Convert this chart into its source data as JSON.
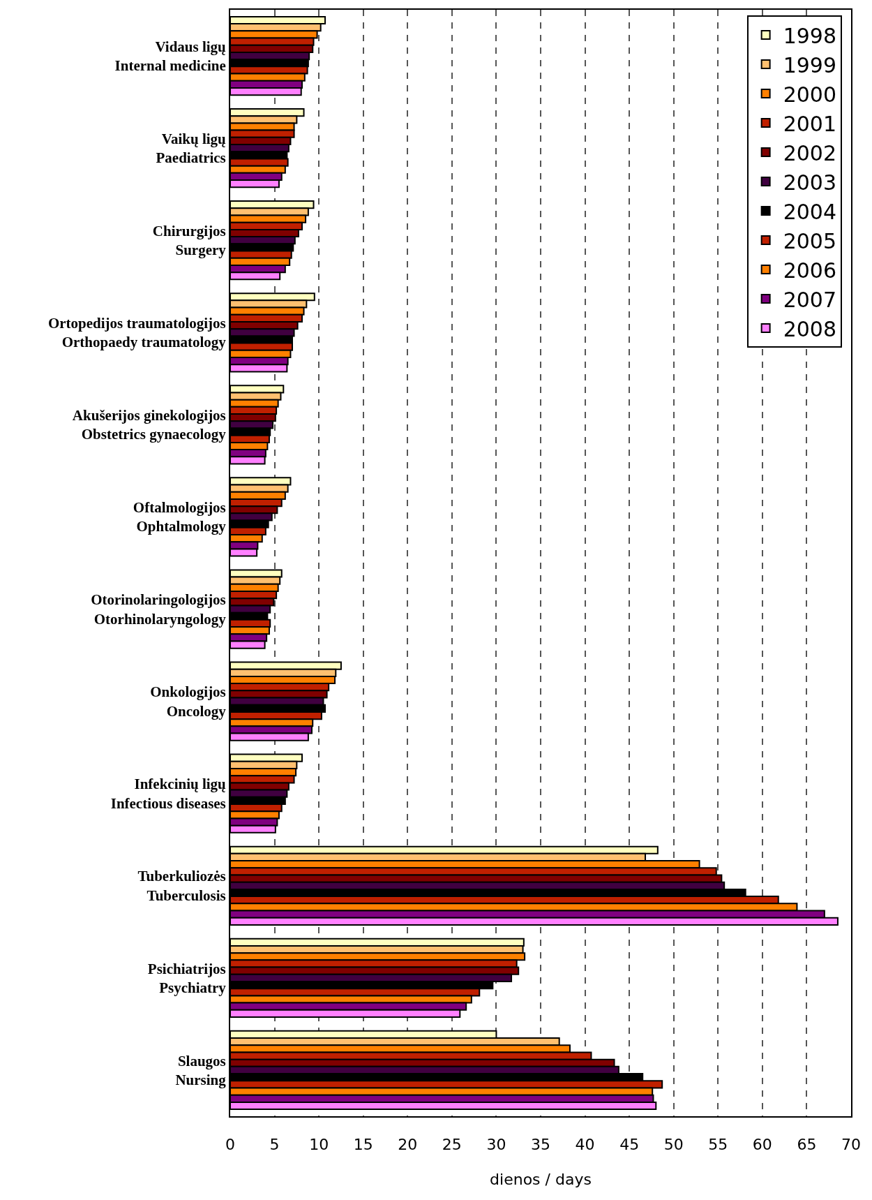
{
  "chart_data": {
    "type": "bar",
    "orientation": "horizontal",
    "xlabel": "dienos / days",
    "categories": [
      "Vidaus ligų\nInternal medicine",
      "Vaikų ligų\nPaediatrics",
      "Chirurgijos\nSurgery",
      "Ortopedijos traumatologijos\nOrthopaedy traumatology",
      "Akušerijos ginekologijos\nObstetrics gynaecology",
      "Oftalmologijos\nOphtalmology",
      "Otorinolaringologijos\nOtorhinolaryngology",
      "Onkologijos\nOncology",
      "Infekcinių ligų\nInfectious diseases",
      "Tuberkuliozės\nTuberculosis",
      "Psichiatrijos\nPsychiatry",
      "Slaugos\nNursing"
    ],
    "series": [
      {
        "name": "1998",
        "color": "#ffffc0",
        "values": [
          10.7,
          8.3,
          9.4,
          9.5,
          6.0,
          6.8,
          5.8,
          12.5,
          8.1,
          48.2,
          33.1,
          30.0
        ]
      },
      {
        "name": "1999",
        "color": "#ffc070",
        "values": [
          10.2,
          7.5,
          8.8,
          8.6,
          5.7,
          6.5,
          5.6,
          11.9,
          7.5,
          46.8,
          33.0,
          37.1
        ]
      },
      {
        "name": "2000",
        "color": "#ff8000",
        "values": [
          9.8,
          7.2,
          8.5,
          8.3,
          5.4,
          6.2,
          5.4,
          11.8,
          7.4,
          52.9,
          33.2,
          38.3
        ]
      },
      {
        "name": "2001",
        "color": "#c02000",
        "values": [
          9.4,
          7.2,
          8.1,
          8.1,
          5.2,
          5.8,
          5.2,
          11.1,
          7.2,
          54.8,
          32.3,
          40.7
        ]
      },
      {
        "name": "2002",
        "color": "#800000",
        "values": [
          9.3,
          6.8,
          7.7,
          7.6,
          5.1,
          5.3,
          4.9,
          10.9,
          6.6,
          55.4,
          32.5,
          43.3
        ]
      },
      {
        "name": "2003",
        "color": "#400040",
        "values": [
          8.9,
          6.6,
          7.3,
          7.2,
          4.8,
          4.7,
          4.5,
          10.5,
          6.4,
          55.7,
          31.7,
          43.8
        ]
      },
      {
        "name": "2004",
        "color": "#000000",
        "values": [
          8.8,
          6.4,
          7.1,
          7.0,
          4.5,
          4.3,
          4.2,
          10.7,
          6.2,
          58.1,
          29.6,
          46.5
        ]
      },
      {
        "name": "2005",
        "color": "#c02000",
        "values": [
          8.7,
          6.5,
          6.9,
          7.0,
          4.4,
          4.0,
          4.5,
          10.3,
          5.8,
          61.8,
          28.1,
          48.7
        ]
      },
      {
        "name": "2006",
        "color": "#ff8000",
        "values": [
          8.4,
          6.2,
          6.7,
          6.8,
          4.2,
          3.6,
          4.4,
          9.3,
          5.5,
          63.9,
          27.2,
          47.6
        ]
      },
      {
        "name": "2007",
        "color": "#800080",
        "values": [
          8.1,
          5.8,
          6.2,
          6.5,
          4.0,
          3.1,
          4.1,
          9.2,
          5.3,
          67.0,
          26.6,
          47.7
        ]
      },
      {
        "name": "2008",
        "color": "#ff80ff",
        "values": [
          8.0,
          5.5,
          5.6,
          6.4,
          3.9,
          3.0,
          3.9,
          8.8,
          5.1,
          68.5,
          25.9,
          48.0
        ]
      }
    ],
    "xlim": [
      0,
      70
    ],
    "xticks": [
      0,
      5,
      10,
      15,
      20,
      25,
      30,
      35,
      40,
      45,
      50,
      55,
      60,
      65,
      70
    ],
    "grid": "x",
    "legend": "top right"
  }
}
